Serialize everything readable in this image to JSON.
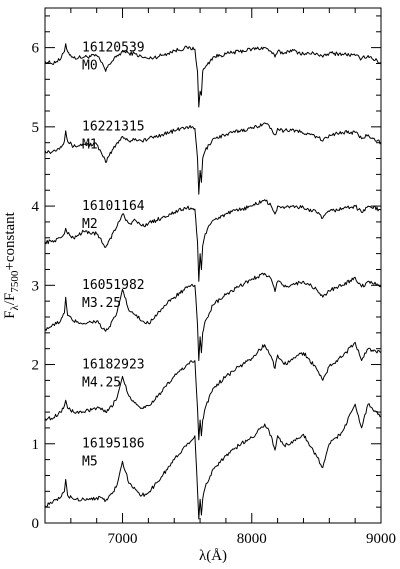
{
  "chart_data": {
    "type": "line",
    "xlabel": "λ(Å)",
    "ylabel": "F_λ/F_7500+constant",
    "xlim": [
      6400,
      9000
    ],
    "ylim": [
      0,
      6.5
    ],
    "x_ticks": [
      7000,
      8000,
      9000
    ],
    "y_ticks": [
      0,
      1,
      2,
      3,
      4,
      5,
      6
    ],
    "x_tick_labels": [
      "7000",
      "8000",
      "9000"
    ],
    "y_tick_labels": [
      "0",
      "1",
      "2",
      "3",
      "4",
      "5",
      "6"
    ],
    "grid": false,
    "legend": "none",
    "line_color": "#000000",
    "series": [
      {
        "id": "16120539",
        "type_label": "M0",
        "offset": 5,
        "x": [
          6400,
          6450,
          6520,
          6550,
          6560,
          6575,
          6620,
          6700,
          6800,
          6850,
          6870,
          6890,
          6950,
          7000,
          7050,
          7100,
          7150,
          7200,
          7300,
          7400,
          7500,
          7560,
          7580,
          7590,
          7600,
          7610,
          7620,
          7640,
          7700,
          7800,
          7900,
          8000,
          8100,
          8150,
          8180,
          8200,
          8250,
          8300,
          8400,
          8500,
          8550,
          8600,
          8700,
          8800,
          8850,
          8900,
          9000
        ],
        "y": [
          0.83,
          0.8,
          0.85,
          0.95,
          1.05,
          0.95,
          0.87,
          0.88,
          0.9,
          0.78,
          0.7,
          0.78,
          0.88,
          0.95,
          0.93,
          0.92,
          0.88,
          0.86,
          0.9,
          0.96,
          1.0,
          0.98,
          0.7,
          0.25,
          0.45,
          0.4,
          0.7,
          0.75,
          0.88,
          0.92,
          0.95,
          0.98,
          1.0,
          0.95,
          0.88,
          0.95,
          0.93,
          0.97,
          0.92,
          0.93,
          0.88,
          0.93,
          0.92,
          0.9,
          0.86,
          0.9,
          0.8
        ]
      },
      {
        "id": "16221315",
        "type_label": "M1",
        "offset": 4,
        "x": [
          6400,
          6450,
          6520,
          6550,
          6560,
          6575,
          6620,
          6700,
          6800,
          6850,
          6870,
          6890,
          6950,
          7000,
          7050,
          7100,
          7150,
          7200,
          7300,
          7400,
          7500,
          7560,
          7580,
          7590,
          7600,
          7610,
          7620,
          7640,
          7700,
          7800,
          7900,
          8000,
          8100,
          8150,
          8180,
          8200,
          8250,
          8300,
          8400,
          8500,
          8550,
          8600,
          8700,
          8800,
          8850,
          8900,
          9000
        ],
        "y": [
          0.7,
          0.68,
          0.75,
          0.82,
          0.95,
          0.82,
          0.75,
          0.78,
          0.78,
          0.62,
          0.55,
          0.62,
          0.78,
          0.88,
          0.82,
          0.85,
          0.82,
          0.85,
          0.9,
          0.95,
          1.0,
          0.98,
          0.6,
          0.15,
          0.45,
          0.3,
          0.6,
          0.7,
          0.85,
          0.9,
          0.95,
          0.98,
          1.05,
          0.98,
          0.9,
          0.98,
          0.95,
          0.97,
          0.92,
          0.88,
          0.82,
          0.9,
          0.93,
          0.93,
          0.85,
          0.9,
          0.8
        ]
      },
      {
        "id": "16101164",
        "type_label": "M2",
        "offset": 3,
        "x": [
          6400,
          6450,
          6520,
          6550,
          6560,
          6575,
          6620,
          6700,
          6800,
          6850,
          6870,
          6890,
          6950,
          7000,
          7050,
          7100,
          7150,
          7200,
          7300,
          7400,
          7500,
          7560,
          7580,
          7590,
          7600,
          7610,
          7620,
          7640,
          7700,
          7800,
          7900,
          8000,
          8100,
          8150,
          8180,
          8200,
          8250,
          8300,
          8400,
          8500,
          8550,
          8600,
          8700,
          8800,
          8850,
          8900,
          9000
        ],
        "y": [
          0.55,
          0.55,
          0.6,
          0.65,
          0.72,
          0.65,
          0.6,
          0.68,
          0.65,
          0.52,
          0.48,
          0.55,
          0.72,
          0.9,
          0.78,
          0.82,
          0.75,
          0.78,
          0.85,
          0.92,
          0.98,
          0.96,
          0.55,
          0.05,
          0.4,
          0.2,
          0.5,
          0.65,
          0.82,
          0.9,
          0.95,
          1.0,
          1.08,
          1.0,
          0.9,
          1.0,
          0.97,
          1.0,
          0.98,
          0.92,
          0.85,
          0.93,
          0.97,
          1.0,
          0.92,
          1.0,
          0.95
        ]
      },
      {
        "id": "16051982",
        "type_label": "M3.25",
        "offset": 2,
        "x": [
          6400,
          6450,
          6520,
          6550,
          6560,
          6575,
          6620,
          6700,
          6800,
          6850,
          6870,
          6890,
          6950,
          7000,
          7050,
          7100,
          7150,
          7200,
          7300,
          7400,
          7500,
          7560,
          7580,
          7590,
          7600,
          7610,
          7620,
          7640,
          7700,
          7800,
          7900,
          8000,
          8100,
          8150,
          8180,
          8200,
          8250,
          8300,
          8400,
          8500,
          8550,
          8600,
          8700,
          8800,
          8850,
          8900,
          9000
        ],
        "y": [
          0.45,
          0.48,
          0.55,
          0.65,
          0.85,
          0.62,
          0.55,
          0.52,
          0.55,
          0.45,
          0.42,
          0.45,
          0.62,
          0.95,
          0.68,
          0.62,
          0.55,
          0.52,
          0.7,
          0.85,
          0.97,
          1.0,
          0.5,
          0.05,
          0.35,
          0.15,
          0.4,
          0.55,
          0.75,
          0.88,
          0.98,
          1.08,
          1.15,
          1.08,
          0.92,
          1.05,
          0.98,
          1.0,
          1.05,
          0.95,
          0.85,
          0.93,
          1.0,
          1.1,
          0.98,
          1.05,
          1.0
        ]
      },
      {
        "id": "16182923",
        "type_label": "M4.25",
        "offset": 1,
        "x": [
          6400,
          6450,
          6520,
          6550,
          6560,
          6575,
          6620,
          6700,
          6800,
          6850,
          6870,
          6890,
          6950,
          7000,
          7050,
          7100,
          7150,
          7200,
          7300,
          7400,
          7500,
          7560,
          7580,
          7590,
          7600,
          7610,
          7620,
          7640,
          7700,
          7800,
          7900,
          8000,
          8100,
          8150,
          8180,
          8200,
          8250,
          8300,
          8400,
          8500,
          8550,
          8600,
          8700,
          8800,
          8850,
          8900,
          9000
        ],
        "y": [
          0.32,
          0.32,
          0.4,
          0.48,
          0.55,
          0.45,
          0.4,
          0.4,
          0.45,
          0.42,
          0.4,
          0.42,
          0.55,
          0.85,
          0.6,
          0.52,
          0.45,
          0.48,
          0.65,
          0.85,
          1.0,
          1.05,
          0.45,
          0.05,
          0.3,
          0.1,
          0.3,
          0.45,
          0.7,
          0.85,
          0.97,
          1.08,
          1.25,
          1.1,
          0.95,
          1.12,
          1.0,
          1.05,
          1.15,
          0.95,
          0.8,
          0.98,
          1.1,
          1.28,
          1.05,
          1.2,
          1.15
        ]
      },
      {
        "id": "16195186",
        "type_label": "M5",
        "offset": 0,
        "x": [
          6400,
          6450,
          6520,
          6550,
          6560,
          6575,
          6620,
          6700,
          6800,
          6850,
          6870,
          6890,
          6950,
          7000,
          7050,
          7100,
          7150,
          7200,
          7300,
          7400,
          7500,
          7560,
          7580,
          7590,
          7600,
          7610,
          7620,
          7640,
          7700,
          7800,
          7900,
          8000,
          8100,
          8150,
          8180,
          8200,
          8250,
          8300,
          8400,
          8500,
          8550,
          8600,
          8700,
          8800,
          8850,
          8900,
          9000
        ],
        "y": [
          0.22,
          0.25,
          0.32,
          0.4,
          0.55,
          0.35,
          0.3,
          0.3,
          0.32,
          0.3,
          0.28,
          0.32,
          0.45,
          0.78,
          0.5,
          0.42,
          0.35,
          0.38,
          0.58,
          0.8,
          1.0,
          1.1,
          0.42,
          0.05,
          0.3,
          0.1,
          0.3,
          0.45,
          0.68,
          0.85,
          0.98,
          1.08,
          1.25,
          1.1,
          0.92,
          1.1,
          0.98,
          1.0,
          1.12,
          0.85,
          0.7,
          1.0,
          1.15,
          1.5,
          1.2,
          1.5,
          1.35
        ]
      }
    ]
  }
}
